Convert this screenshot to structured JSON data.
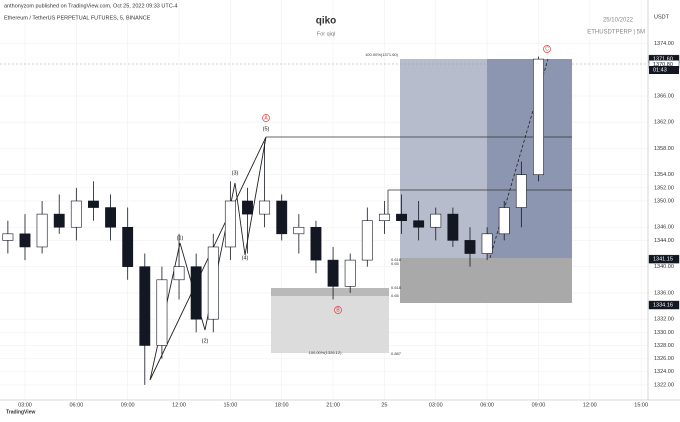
{
  "header": {
    "publisher": "anthonyzom published on TradingView.com, Oct 25, 2022 09:33 UTC-4",
    "symbol": "Ethereum / TetherUS PERPETUAL FUTURES, 5, BINANCE",
    "title": "qiko",
    "subtitle": "For qiql",
    "date": "25/10/2022",
    "ticker": "ETHUSDTPERP | 5M",
    "currency": "USDT",
    "countdown": "01:43",
    "logo": "TradingView"
  },
  "chart_data": {
    "type": "candlestick",
    "x": [
      2,
      3,
      4,
      5,
      6,
      7,
      8,
      9,
      10,
      11,
      12,
      13,
      14,
      15,
      16,
      17,
      18,
      19,
      20,
      21,
      22,
      23,
      24,
      25,
      26,
      27,
      28,
      29,
      30,
      31,
      32,
      33
    ],
    "open": [
      1344,
      1345,
      1343,
      1348,
      1346,
      1350,
      1349,
      1346,
      1340,
      1328,
      1338,
      1340,
      1332,
      1343,
      1350,
      1348,
      1350,
      1345,
      1346,
      1341,
      1337,
      1341,
      1347,
      1348,
      1347,
      1346,
      1348,
      1344,
      1342,
      1345,
      1349,
      1354
    ],
    "high": [
      1347,
      1348,
      1350,
      1351,
      1352,
      1353,
      1351,
      1349,
      1342,
      1340,
      1345,
      1342,
      1345,
      1353,
      1352,
      1359,
      1351,
      1348,
      1347,
      1343,
      1342,
      1349,
      1350,
      1351,
      1350,
      1349,
      1349,
      1346,
      1346,
      1350,
      1356,
      1372
    ],
    "low": [
      1342,
      1341,
      1342,
      1345,
      1344,
      1347,
      1344,
      1338,
      1322,
      1326,
      1335,
      1330,
      1330,
      1341,
      1342,
      1346,
      1344,
      1342,
      1339,
      1335,
      1336,
      1340,
      1345,
      1345,
      1344,
      1344,
      1343,
      1340,
      1341,
      1344,
      1346,
      1353
    ],
    "close": [
      1345,
      1343,
      1348,
      1346,
      1350,
      1349,
      1346,
      1340,
      1328,
      1338,
      1340,
      1332,
      1343,
      1350,
      1348,
      1350,
      1345,
      1346,
      1341,
      1337,
      1341,
      1347,
      1348,
      1347,
      1346,
      1348,
      1344,
      1342,
      1345,
      1349,
      1354,
      1371.6
    ],
    "xlim": [
      1.54,
      39.4
    ],
    "xticks": [
      {
        "value": 3,
        "label": "03:00"
      },
      {
        "value": 6,
        "label": "06:00"
      },
      {
        "value": 9,
        "label": "09:00"
      },
      {
        "value": 12,
        "label": "12:00"
      },
      {
        "value": 15,
        "label": "15:00"
      },
      {
        "value": 18,
        "label": "18:00"
      },
      {
        "value": 21,
        "label": "21:00"
      },
      {
        "value": 24,
        "label": "25"
      },
      {
        "value": 27,
        "label": "03:00"
      },
      {
        "value": 30,
        "label": "06:00"
      },
      {
        "value": 33,
        "label": "09:00"
      },
      {
        "value": 36,
        "label": "12:00"
      },
      {
        "value": 39,
        "label": "15:00"
      }
    ],
    "ylim": [
      1319.7,
      1380.6
    ],
    "yticks": [
      {
        "value": 1374,
        "label": "1374.00"
      },
      {
        "value": 1366,
        "label": "1366.00"
      },
      {
        "value": 1362,
        "label": "1362.00"
      },
      {
        "value": 1358,
        "label": "1358.00"
      },
      {
        "value": 1354,
        "label": "1354.00"
      },
      {
        "value": 1352,
        "label": "1352.00"
      },
      {
        "value": 1350,
        "label": "1350.00"
      },
      {
        "value": 1346,
        "label": "1346.00"
      },
      {
        "value": 1344,
        "label": "1344.00"
      },
      {
        "value": 1340,
        "label": "1340.00"
      },
      {
        "value": 1336,
        "label": "1336.00"
      },
      {
        "value": 1332,
        "label": "1332.00"
      },
      {
        "value": 1330,
        "label": "1330.00"
      },
      {
        "value": 1328,
        "label": "1328.00"
      },
      {
        "value": 1326,
        "label": "1326.00"
      },
      {
        "value": 1324,
        "label": "1324.00"
      },
      {
        "value": 1322,
        "label": "1322.00"
      }
    ],
    "price_labels": [
      {
        "value": 1371.6,
        "label": "1371.60"
      },
      {
        "value": 1370.8,
        "label": "1370.80"
      },
      {
        "value": 1341.15,
        "label": "1341.15"
      },
      {
        "value": 1334.16,
        "label": "1334.16"
      }
    ],
    "wave_labels": [
      "(1)",
      "(2)",
      "(3)",
      "(4)",
      "(5)",
      "A",
      "B",
      "C"
    ],
    "fib_labels": [
      "100.00%(1371.60)",
      "0.618",
      "0.65",
      "100.00%(1326.12)",
      "0.887",
      "0.618",
      "0.65"
    ],
    "grid": true,
    "up_color": "#ffffff",
    "down_color": "#131722"
  }
}
